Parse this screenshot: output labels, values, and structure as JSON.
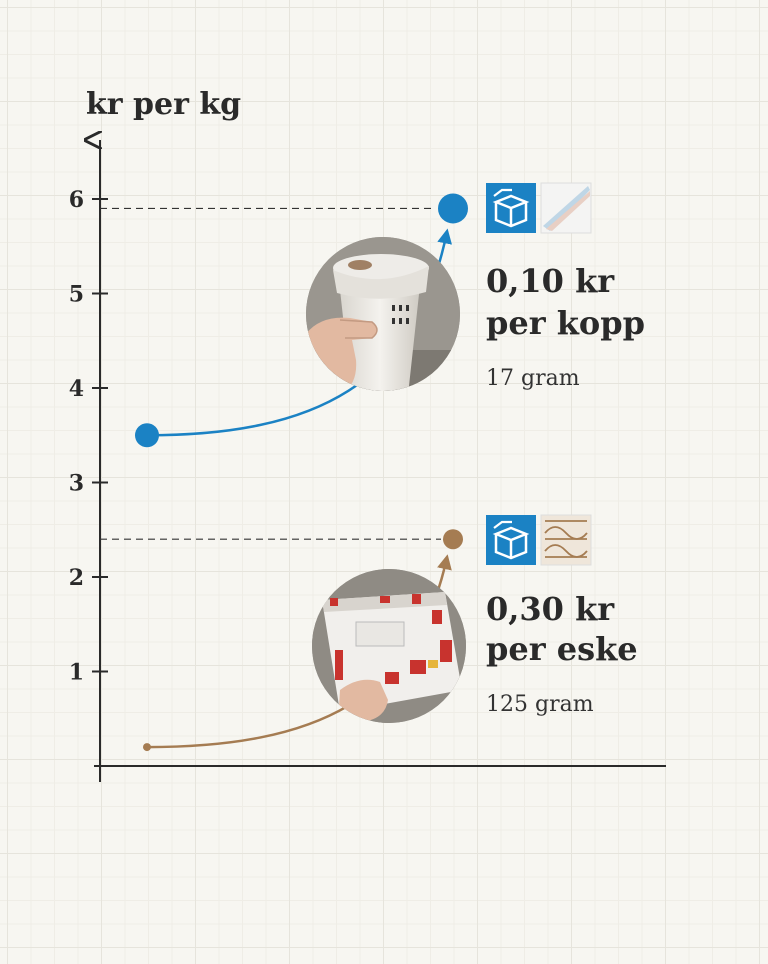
{
  "chart_data": {
    "type": "line",
    "ylabel": "kr per kg",
    "ylim": [
      0,
      6.5
    ],
    "yticks": [
      1,
      2,
      3,
      4,
      5,
      6
    ],
    "grid": true,
    "series": [
      {
        "x": [
          0,
          1
        ],
        "values": [
          3.5,
          5.9
        ],
        "color": "#1b82c4",
        "price_line1": "0,10 kr",
        "price_line2": "per kopp",
        "weight": "17 gram",
        "photo": "paper-coffee-cup-photo",
        "icons": [
          "recycling-box-icon",
          "coated-paper-icon"
        ]
      },
      {
        "x": [
          0,
          1
        ],
        "values": [
          0.2,
          2.4
        ],
        "color": "#a57c52",
        "price_line1": "0,30 kr",
        "price_line2": "per eske",
        "weight": "125 gram",
        "photo": "cardboard-box-photo",
        "icons": [
          "recycling-box-icon",
          "corrugated-cardboard-icon"
        ]
      }
    ]
  }
}
